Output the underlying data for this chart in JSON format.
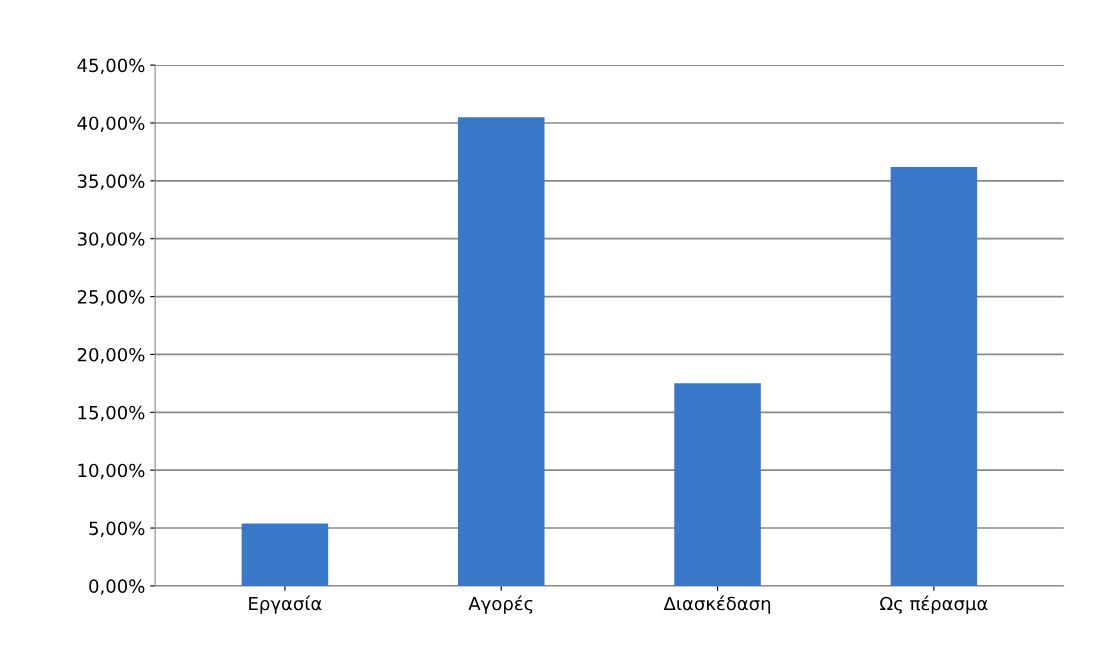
{
  "chart_data": {
    "type": "bar",
    "categories": [
      "Εργασία",
      "Αγορές",
      "Διασκέδαση",
      "Ως πέρασμα"
    ],
    "values": [
      5.4,
      40.5,
      17.5,
      36.2
    ],
    "color": "#3a78c9",
    "ylim": [
      0,
      45
    ],
    "yticks": [
      {
        "value": 0,
        "label": "0,00%"
      },
      {
        "value": 5,
        "label": "5,00%"
      },
      {
        "value": 10,
        "label": "10,00%"
      },
      {
        "value": 15,
        "label": "15,00%"
      },
      {
        "value": 20,
        "label": "20,00%"
      },
      {
        "value": 25,
        "label": "25,00%"
      },
      {
        "value": 30,
        "label": "30,00%"
      },
      {
        "value": 35,
        "label": "35,00%"
      },
      {
        "value": 40,
        "label": "40,00%"
      },
      {
        "value": 45,
        "label": "45,00%"
      }
    ],
    "grid": "y",
    "legend": false
  }
}
